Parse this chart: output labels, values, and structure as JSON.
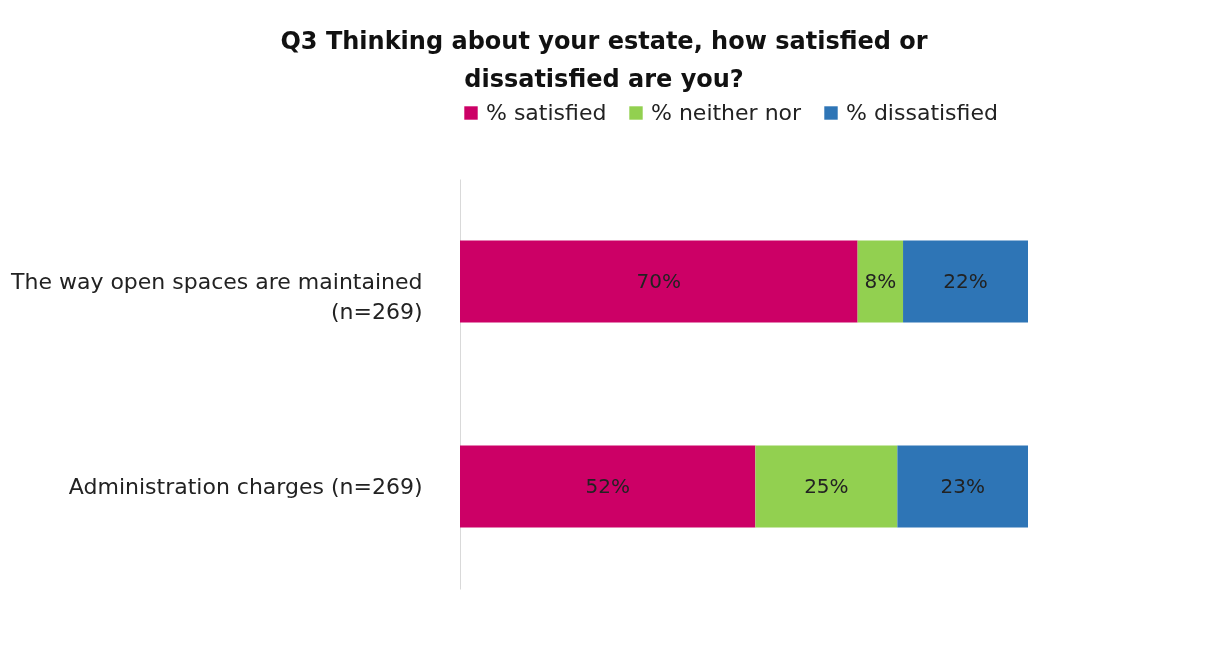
{
  "chart_data": {
    "type": "bar",
    "orientation": "horizontal",
    "stacked": true,
    "title": "Q3 Thinking about your estate, how satisfied or dissatisfied are you?",
    "categories": [
      "The way open spaces are maintained (n=269)",
      "Administration charges (n=269)"
    ],
    "series": [
      {
        "name": "% satisfied",
        "color": "#cc0066",
        "values": [
          70,
          52
        ],
        "value_labels": [
          "70%",
          "52%"
        ]
      },
      {
        "name": "% neither nor",
        "color": "#92d050",
        "values": [
          8,
          25
        ],
        "value_labels": [
          "8%",
          "25%"
        ]
      },
      {
        "name": "% dissatisfied",
        "color": "#2e75b6",
        "values": [
          22,
          23
        ],
        "value_labels": [
          "22%",
          "23%"
        ]
      }
    ],
    "legend": "top",
    "tick_labels": "y"
  }
}
